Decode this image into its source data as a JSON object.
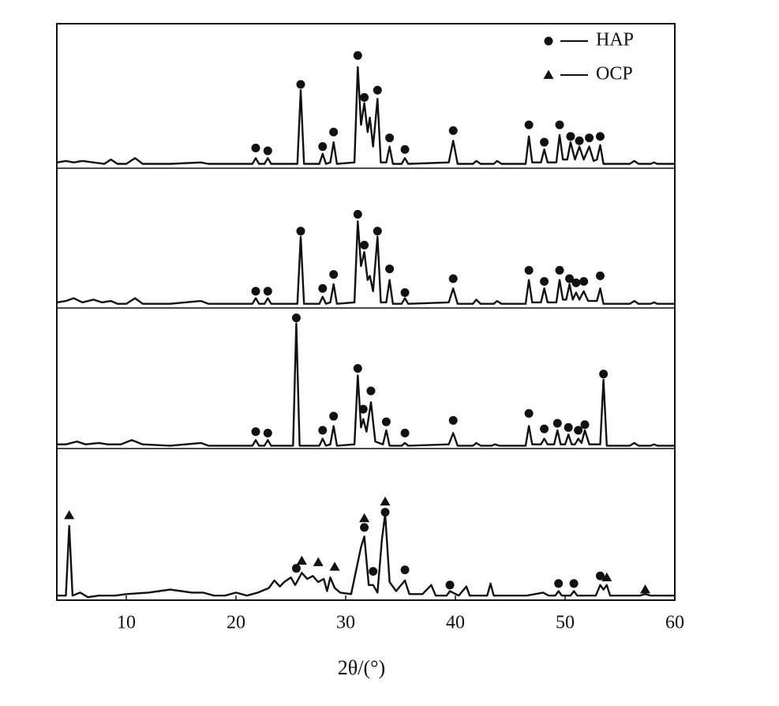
{
  "chart_data": {
    "type": "stacked-line",
    "x_label": "2θ/(°)",
    "xlim": [
      3.7,
      60
    ],
    "xticks": [
      10,
      20,
      30,
      40,
      50,
      60
    ],
    "ylim": [
      0,
      100
    ],
    "color": "#111111",
    "series": [
      {
        "name": "HAP",
        "marker": "circle",
        "color": "#111111"
      },
      {
        "name": "OCP",
        "marker": "triangle",
        "color": "#111111"
      }
    ],
    "panels": [
      {
        "x": [
          3.7,
          4.5,
          5.2,
          6,
          7,
          8,
          8.6,
          9.2,
          10,
          10.8,
          11.5,
          14,
          16.8,
          17.5,
          20,
          21.5,
          21.8,
          22.1,
          22.6,
          22.9,
          23.2,
          25.6,
          25.9,
          26.2,
          27.6,
          27.9,
          28.2,
          28.6,
          28.9,
          29.2,
          30.8,
          31.1,
          31.4,
          31.7,
          32,
          32.2,
          32.5,
          32.9,
          33.2,
          33.7,
          34,
          34.3,
          35.1,
          35.4,
          35.7,
          39.4,
          39.8,
          40.2,
          41.6,
          41.9,
          42.3,
          43.5,
          43.8,
          44.2,
          46.4,
          46.7,
          47,
          47.8,
          48.1,
          48.4,
          49.2,
          49.5,
          49.8,
          50.2,
          50.5,
          50.9,
          51.3,
          51.7,
          52.2,
          52.6,
          52.9,
          53.2,
          53.5,
          55.9,
          56.3,
          56.7,
          57.8,
          58.1,
          58.4,
          60
        ],
        "values": [
          4,
          5,
          4,
          5,
          4,
          3,
          6,
          3,
          3,
          7,
          3,
          3,
          4,
          3,
          3,
          3,
          7,
          3,
          3,
          7,
          3,
          3,
          54,
          3,
          3,
          10,
          3,
          4,
          18,
          3,
          4,
          70,
          30,
          45,
          25,
          35,
          15,
          48,
          4,
          4,
          15,
          3,
          3,
          7,
          3,
          4,
          19,
          3,
          3,
          5,
          3,
          3,
          5,
          3,
          3,
          22,
          4,
          4,
          13,
          4,
          4,
          23,
          6,
          6,
          18,
          6,
          15,
          6,
          15,
          5,
          6,
          16,
          3,
          3,
          5,
          3,
          3,
          4,
          3,
          3
        ],
        "markers": [
          {
            "x": [
              21.8,
              22.9,
              25.9,
              27.9,
              28.9,
              31.1,
              31.7,
              32.9,
              34,
              35.4,
              39.8,
              46.7,
              48.1,
              49.5,
              50.5,
              51.3,
              52.2,
              53.2
            ],
            "values": [
              14,
              12,
              58,
              15,
              25,
              78,
              49,
              54,
              21,
              13,
              26,
              30,
              18,
              30,
              22,
              19,
              21,
              22
            ]
          },
          {
            "x": [],
            "values": []
          }
        ]
      },
      {
        "x": [
          3.7,
          4.5,
          5.2,
          6,
          7,
          7.8,
          8.6,
          9.2,
          10,
          10.8,
          11.5,
          14,
          16.8,
          17.5,
          20,
          21.5,
          21.8,
          22.1,
          22.6,
          22.9,
          23.2,
          25.6,
          25.9,
          26.2,
          27.6,
          27.9,
          28.2,
          28.6,
          28.9,
          29.2,
          30.8,
          31.1,
          31.4,
          31.7,
          32,
          32.2,
          32.5,
          32.9,
          33.2,
          33.7,
          34,
          34.3,
          35.1,
          35.4,
          35.7,
          39.4,
          39.8,
          40.2,
          41.6,
          41.9,
          42.3,
          43.5,
          43.8,
          44.2,
          46.4,
          46.7,
          47,
          47.8,
          48.1,
          48.4,
          49.2,
          49.5,
          49.8,
          50.1,
          50.4,
          50.7,
          51,
          51.3,
          51.7,
          52.1,
          52.9,
          53.2,
          53.5,
          55.9,
          56.3,
          56.7,
          57.8,
          58.1,
          58.4,
          60
        ],
        "values": [
          4,
          5,
          7,
          4,
          6,
          4,
          5,
          3,
          3,
          7,
          3,
          3,
          5,
          3,
          3,
          3,
          7,
          3,
          3,
          7,
          3,
          3,
          51,
          3,
          3,
          8,
          3,
          4,
          17,
          3,
          4,
          62,
          30,
          40,
          20,
          23,
          12,
          51,
          4,
          4,
          20,
          3,
          3,
          7,
          3,
          4,
          14,
          3,
          3,
          6,
          3,
          3,
          5,
          3,
          3,
          20,
          4,
          4,
          14,
          4,
          4,
          20,
          6,
          6,
          17,
          6,
          11,
          6,
          12,
          5,
          5,
          14,
          3,
          3,
          5,
          3,
          3,
          4,
          3,
          3
        ],
        "markers": [
          {
            "x": [
              21.8,
              22.9,
              25.9,
              27.9,
              28.9,
              31.1,
              31.7,
              32.9,
              34,
              35.4,
              39.8,
              46.7,
              48.1,
              49.5,
              50.4,
              51,
              51.7,
              53.2
            ],
            "values": [
              12,
              12,
              55,
              14,
              24,
              67,
              45,
              55,
              28,
              11,
              21,
              27,
              19,
              27,
              21,
              18,
              19,
              23
            ]
          },
          {
            "x": [],
            "values": []
          }
        ]
      },
      {
        "x": [
          3.7,
          4.5,
          5.5,
          6.3,
          7.5,
          8.3,
          9.5,
          10.5,
          11.5,
          14,
          16.8,
          17.5,
          20,
          21.5,
          21.8,
          22.1,
          22.6,
          22.9,
          23.2,
          25.2,
          25.5,
          25.8,
          27.6,
          27.9,
          28.2,
          28.6,
          28.9,
          29.2,
          30.8,
          31.1,
          31.4,
          31.6,
          31.9,
          32.3,
          32.7,
          33.4,
          33.7,
          34,
          35.1,
          35.4,
          35.7,
          39.4,
          39.8,
          40.2,
          41.6,
          41.9,
          42.3,
          43.3,
          43.6,
          44,
          46.4,
          46.7,
          47,
          47.8,
          48.1,
          48.4,
          49,
          49.3,
          49.6,
          50,
          50.3,
          50.6,
          50.9,
          51.2,
          51.5,
          51.8,
          52.2,
          53.2,
          53.5,
          53.8,
          55.9,
          56.3,
          56.7,
          57.8,
          58.1,
          58.4,
          60
        ],
        "values": [
          3,
          3,
          5,
          3,
          4,
          3,
          3,
          6,
          3,
          2,
          4,
          2,
          2,
          2,
          6,
          2,
          2,
          6,
          2,
          2,
          89,
          2,
          2,
          7,
          2,
          3,
          16,
          2,
          3,
          52,
          15,
          21,
          12,
          33,
          5,
          3,
          13,
          2,
          2,
          4,
          2,
          3,
          11,
          2,
          2,
          4,
          2,
          2,
          3,
          2,
          2,
          16,
          3,
          3,
          7,
          3,
          3,
          13,
          3,
          3,
          10,
          3,
          3,
          7,
          4,
          13,
          3,
          3,
          49,
          2,
          2,
          4,
          2,
          2,
          3,
          2,
          2
        ],
        "markers": [
          {
            "x": [
              21.8,
              22.9,
              25.5,
              27.9,
              28.9,
              31.1,
              31.6,
              32.3,
              33.7,
              35.4,
              39.8,
              46.7,
              48.1,
              49.3,
              50.3,
              51.2,
              51.8,
              53.5
            ],
            "values": [
              12,
              11,
              93,
              13,
              23,
              57,
              28,
              41,
              19,
              11,
              20,
              25,
              14,
              18,
              15,
              13,
              17,
              53
            ]
          },
          {
            "x": [],
            "values": []
          }
        ]
      },
      {
        "x": [
          3.7,
          4.5,
          4.8,
          5.1,
          5.8,
          6.5,
          7.5,
          9,
          10,
          12,
          13,
          14,
          15,
          16,
          17,
          18,
          19,
          20,
          21,
          22,
          23,
          23.5,
          24,
          24.4,
          25,
          25.4,
          26,
          26.5,
          27,
          27.5,
          28,
          28.3,
          28.6,
          29,
          29.5,
          30.5,
          31.4,
          31.7,
          32.1,
          32.5,
          32.9,
          33.3,
          33.6,
          34,
          34.6,
          35.4,
          35.8,
          37,
          37.8,
          38.2,
          39.2,
          39.5,
          40.3,
          41,
          41.3,
          42.9,
          43.2,
          43.5,
          45,
          46.5,
          48,
          48.5,
          49.1,
          49.4,
          49.7,
          50.5,
          50.8,
          51.1,
          52.8,
          53.2,
          53.5,
          53.8,
          54.1,
          56.8,
          57.3,
          57.8,
          60
        ],
        "values": [
          3,
          3,
          49,
          3,
          5,
          2,
          3,
          3,
          4,
          5,
          6,
          7,
          6,
          5,
          5,
          3,
          3,
          5,
          3,
          5,
          8,
          13,
          9,
          12,
          15,
          10,
          18,
          14,
          16,
          12,
          14,
          6,
          15,
          8,
          5,
          4,
          35,
          42,
          10,
          10,
          5,
          40,
          57,
          12,
          6,
          13,
          4,
          4,
          10,
          3,
          3,
          6,
          3,
          9,
          3,
          3,
          11,
          3,
          3,
          3,
          5,
          3,
          3,
          6,
          3,
          3,
          6,
          3,
          3,
          10,
          7,
          10,
          3,
          3,
          4,
          3,
          3
        ],
        "markers": [
          {
            "x": [
              25.5,
              31.7,
              32.5,
              33.6,
              35.4,
              39.5,
              49.4,
              50.8,
              53.2
            ],
            "values": [
              21,
              48,
              19,
              58,
              20,
              10,
              11,
              11,
              16
            ]
          },
          {
            "x": [
              4.8,
              26,
              27.5,
              29,
              31.7,
              33.6,
              53.8,
              57.3
            ],
            "values": [
              56,
              26,
              25,
              22,
              54,
              65,
              15,
              7
            ]
          }
        ]
      }
    ]
  }
}
